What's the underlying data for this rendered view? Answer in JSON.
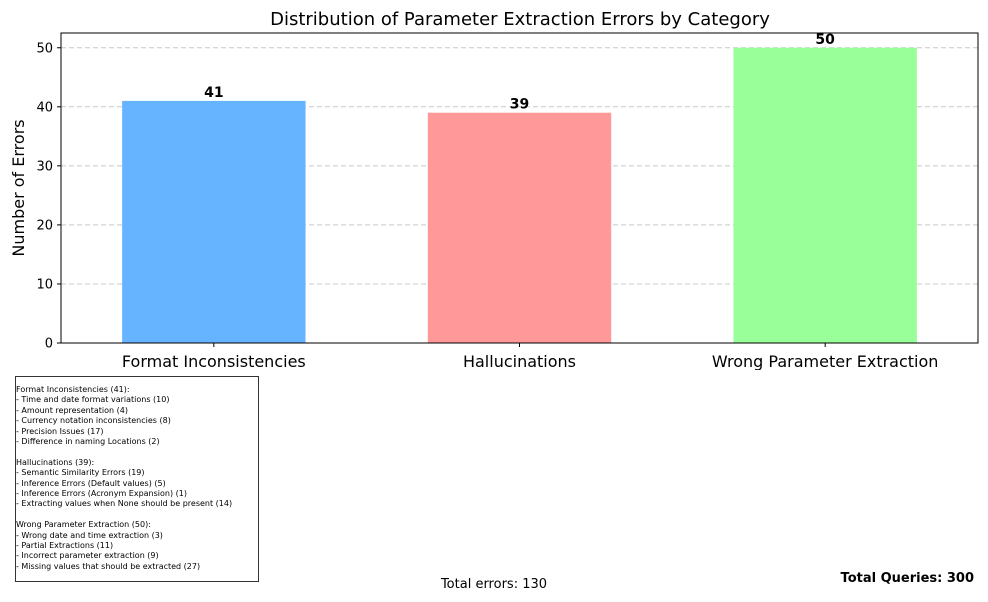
{
  "chart_data": {
    "type": "bar",
    "title": "Distribution of Parameter Extraction Errors by Category",
    "xlabel": "",
    "ylabel": "Number of Errors",
    "categories": [
      "Format Inconsistencies",
      "Hallucinations",
      "Wrong Parameter Extraction"
    ],
    "values": [
      41,
      39,
      50
    ],
    "value_labels": [
      "41",
      "39",
      "50"
    ],
    "colors": [
      "#66b3ff",
      "#ff9999",
      "#99ff99"
    ],
    "ylim": [
      0,
      52.5
    ],
    "yticks": [
      0,
      10,
      20,
      30,
      40,
      50
    ],
    "ytick_labels": [
      "0",
      "10",
      "20",
      "30",
      "40",
      "50"
    ],
    "grid": "y-dashed"
  },
  "breakdown": [
    {
      "header": "Format Inconsistencies (41):",
      "items": [
        "- Time and date format variations (10)",
        "- Amount representation (4)",
        "- Currency notation inconsistencies (8)",
        "- Precision Issues (17)",
        "- Difference in naming Locations (2)"
      ]
    },
    {
      "header": "Hallucinations (39):",
      "items": [
        "- Semantic Similarity Errors (19)",
        "- Inference Errors (Default values) (5)",
        "- Inference Errors (Acronym Expansion) (1)",
        "- Extracting values when None should be present (14)"
      ]
    },
    {
      "header": "Wrong Parameter Extraction (50):",
      "items": [
        "- Wrong date and time extraction (3)",
        "- Partial Extractions (11)",
        "- Incorrect parameter extraction (9)",
        "- Missing values that should be extracted (27)"
      ]
    }
  ],
  "footer": {
    "total_errors": "Total errors: 130",
    "total_queries": "Total Queries: 300"
  }
}
